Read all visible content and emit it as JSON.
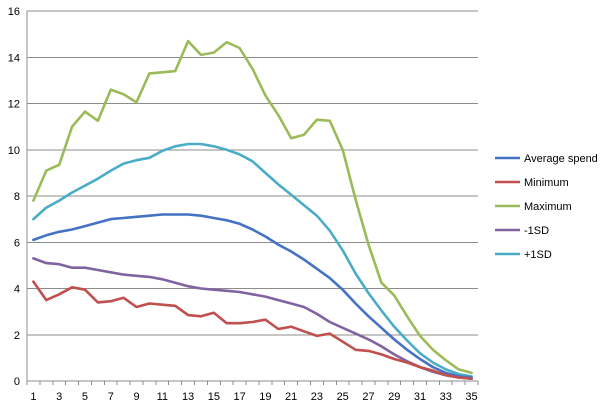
{
  "chart_data": {
    "type": "line",
    "title": "",
    "xlabel": "",
    "ylabel": "",
    "ylim": [
      0,
      16
    ],
    "yticks": [
      0,
      2,
      4,
      6,
      8,
      10,
      12,
      14,
      16
    ],
    "x": [
      1,
      2,
      3,
      4,
      5,
      6,
      7,
      8,
      9,
      10,
      11,
      12,
      13,
      14,
      15,
      16,
      17,
      18,
      19,
      20,
      21,
      22,
      23,
      24,
      25,
      26,
      27,
      28,
      29,
      30,
      31,
      32,
      33,
      34,
      35
    ],
    "xtick_labels": [
      "1",
      "3",
      "5",
      "7",
      "9",
      "11",
      "13",
      "15",
      "17",
      "19",
      "21",
      "23",
      "25",
      "27",
      "29",
      "31",
      "33",
      "35"
    ],
    "grid": "horizontal",
    "legend_position": "right",
    "series": [
      {
        "name": "Average spend",
        "color": "#4472C4",
        "values": [
          6.1,
          6.3,
          6.45,
          6.55,
          6.7,
          6.85,
          7.0,
          7.05,
          7.1,
          7.15,
          7.2,
          7.2,
          7.2,
          7.15,
          7.05,
          6.95,
          6.8,
          6.55,
          6.25,
          5.9,
          5.6,
          5.25,
          4.85,
          4.45,
          3.95,
          3.35,
          2.8,
          2.3,
          1.8,
          1.35,
          0.95,
          0.6,
          0.35,
          0.2,
          0.15
        ]
      },
      {
        "name": "Minimum",
        "color": "#C0504D",
        "values": [
          4.3,
          3.5,
          3.75,
          4.05,
          3.95,
          3.4,
          3.45,
          3.6,
          3.2,
          3.35,
          3.3,
          3.25,
          2.85,
          2.8,
          2.95,
          2.5,
          2.5,
          2.55,
          2.65,
          2.25,
          2.35,
          2.15,
          1.95,
          2.05,
          1.7,
          1.35,
          1.3,
          1.15,
          0.95,
          0.8,
          0.6,
          0.45,
          0.25,
          0.15,
          0.1
        ]
      },
      {
        "name": "Maximum",
        "color": "#9BBB59",
        "values": [
          7.8,
          9.1,
          9.35,
          11.0,
          11.65,
          11.25,
          12.6,
          12.4,
          12.05,
          13.3,
          13.35,
          13.4,
          14.7,
          14.1,
          14.2,
          14.65,
          14.4,
          13.5,
          12.35,
          11.5,
          10.5,
          10.65,
          11.3,
          11.25,
          10.0,
          7.85,
          5.9,
          4.25,
          3.7,
          2.8,
          1.95,
          1.35,
          0.9,
          0.5,
          0.35
        ]
      },
      {
        "name": "-1SD",
        "color": "#8064A2",
        "values": [
          5.3,
          5.1,
          5.05,
          4.9,
          4.9,
          4.8,
          4.7,
          4.6,
          4.55,
          4.5,
          4.4,
          4.25,
          4.1,
          4.0,
          3.95,
          3.9,
          3.85,
          3.75,
          3.65,
          3.5,
          3.35,
          3.2,
          2.9,
          2.55,
          2.3,
          2.05,
          1.8,
          1.5,
          1.15,
          0.85,
          0.6,
          0.4,
          0.25,
          0.15,
          0.1
        ]
      },
      {
        "name": "+1SD",
        "color": "#4BACC6",
        "values": [
          7.0,
          7.5,
          7.8,
          8.15,
          8.45,
          8.75,
          9.1,
          9.4,
          9.55,
          9.65,
          9.95,
          10.15,
          10.25,
          10.25,
          10.15,
          10.0,
          9.8,
          9.5,
          9.0,
          8.5,
          8.05,
          7.6,
          7.15,
          6.5,
          5.65,
          4.65,
          3.8,
          3.05,
          2.35,
          1.75,
          1.2,
          0.8,
          0.5,
          0.3,
          0.2
        ]
      }
    ]
  }
}
